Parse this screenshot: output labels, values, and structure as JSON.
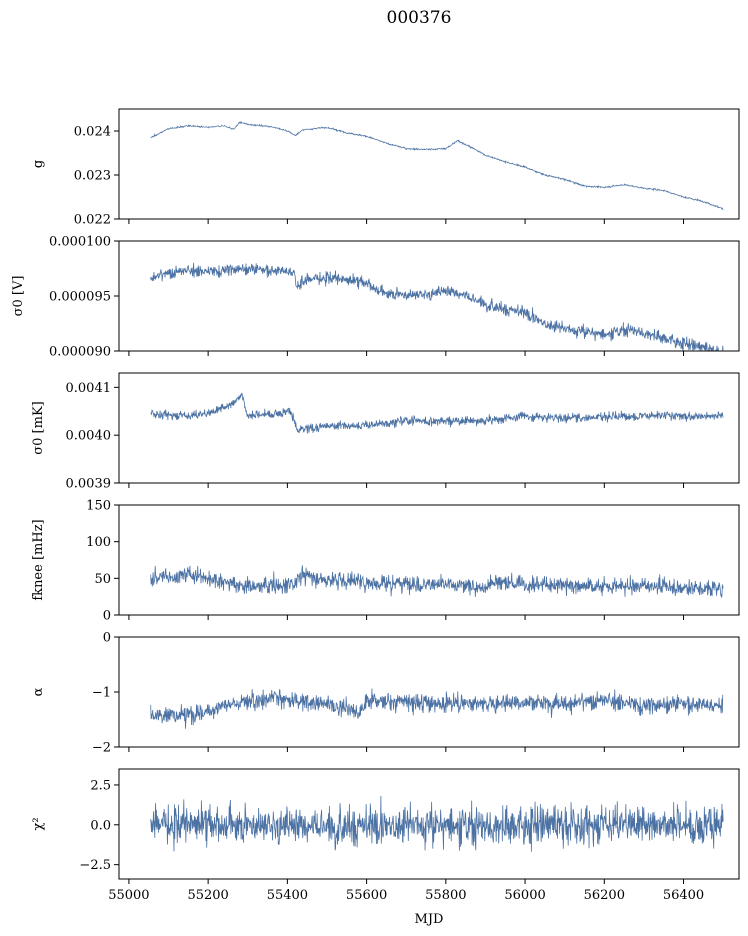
{
  "chart_data": {
    "title": "000376",
    "type": "line",
    "xlabel": "MJD",
    "xlim": [
      54975,
      56540
    ],
    "xticks": [
      55000,
      55200,
      55400,
      55600,
      55800,
      56000,
      56200,
      56400
    ],
    "xtick_labels": [
      "55000",
      "55200",
      "55400",
      "55600",
      "55800",
      "56000",
      "56200",
      "56400"
    ],
    "line_color": "#4c72a4",
    "panels": [
      {
        "id": "g",
        "ylabel": "g",
        "ylim": [
          0.022,
          0.0245
        ],
        "yticks": [
          0.022,
          0.023,
          0.024
        ],
        "ytick_labels": [
          "0.022",
          "0.023",
          "0.024"
        ],
        "noise": 2e-05,
        "points": [
          [
            55055,
            0.02385
          ],
          [
            55100,
            0.02405
          ],
          [
            55150,
            0.02412
          ],
          [
            55200,
            0.02408
          ],
          [
            55240,
            0.02412
          ],
          [
            55265,
            0.02404
          ],
          [
            55280,
            0.0242
          ],
          [
            55300,
            0.02415
          ],
          [
            55360,
            0.0241
          ],
          [
            55400,
            0.024
          ],
          [
            55420,
            0.0239
          ],
          [
            55440,
            0.02403
          ],
          [
            55500,
            0.02408
          ],
          [
            55550,
            0.02396
          ],
          [
            55600,
            0.02388
          ],
          [
            55650,
            0.02372
          ],
          [
            55700,
            0.0236
          ],
          [
            55750,
            0.02358
          ],
          [
            55800,
            0.0236
          ],
          [
            55830,
            0.02378
          ],
          [
            55860,
            0.02365
          ],
          [
            55900,
            0.02345
          ],
          [
            55950,
            0.0233
          ],
          [
            56000,
            0.02318
          ],
          [
            56050,
            0.023
          ],
          [
            56100,
            0.0229
          ],
          [
            56150,
            0.02275
          ],
          [
            56200,
            0.02272
          ],
          [
            56250,
            0.02278
          ],
          [
            56300,
            0.0227
          ],
          [
            56350,
            0.02265
          ],
          [
            56400,
            0.0225
          ],
          [
            56450,
            0.0224
          ],
          [
            56500,
            0.02223
          ]
        ]
      },
      {
        "id": "sigma0_v",
        "ylabel": "σ0 [V]",
        "ylim": [
          9e-05,
          0.0001
        ],
        "yticks": [
          9e-05,
          9.5e-05,
          0.0001
        ],
        "ytick_labels": [
          "0.000090",
          "0.000095",
          "0.000100"
        ],
        "noise": 4e-07,
        "points": [
          [
            55055,
            9.66e-05
          ],
          [
            55100,
            9.71e-05
          ],
          [
            55150,
            9.73e-05
          ],
          [
            55200,
            9.72e-05
          ],
          [
            55280,
            9.75e-05
          ],
          [
            55350,
            9.74e-05
          ],
          [
            55418,
            9.72e-05
          ],
          [
            55422,
            9.58e-05
          ],
          [
            55450,
            9.65e-05
          ],
          [
            55500,
            9.67e-05
          ],
          [
            55560,
            9.64e-05
          ],
          [
            55600,
            9.62e-05
          ],
          [
            55640,
            9.53e-05
          ],
          [
            55700,
            9.51e-05
          ],
          [
            55760,
            9.52e-05
          ],
          [
            55800,
            9.55e-05
          ],
          [
            55840,
            9.52e-05
          ],
          [
            55880,
            9.46e-05
          ],
          [
            55930,
            9.4e-05
          ],
          [
            56000,
            9.35e-05
          ],
          [
            56050,
            9.25e-05
          ],
          [
            56100,
            9.2e-05
          ],
          [
            56150,
            9.18e-05
          ],
          [
            56200,
            9.15e-05
          ],
          [
            56260,
            9.2e-05
          ],
          [
            56300,
            9.17e-05
          ],
          [
            56350,
            9.12e-05
          ],
          [
            56400,
            9.07e-05
          ],
          [
            56450,
            9.03e-05
          ],
          [
            56500,
            8.98e-05
          ]
        ]
      },
      {
        "id": "sigma0_mk",
        "ylabel": "σ0 [mK]",
        "ylim": [
          0.0039,
          0.00413
        ],
        "yticks": [
          0.0039,
          0.004,
          0.0041
        ],
        "ytick_labels": [
          "0.0039",
          "0.0040",
          "0.0041"
        ],
        "noise": 6.5e-06,
        "points": [
          [
            55055,
            0.004045
          ],
          [
            55150,
            0.00404
          ],
          [
            55200,
            0.004045
          ],
          [
            55260,
            0.004065
          ],
          [
            55285,
            0.004085
          ],
          [
            55300,
            0.00404
          ],
          [
            55350,
            0.004045
          ],
          [
            55410,
            0.00405
          ],
          [
            55425,
            0.00401
          ],
          [
            55500,
            0.00402
          ],
          [
            55600,
            0.00402
          ],
          [
            55700,
            0.00403
          ],
          [
            55800,
            0.00403
          ],
          [
            55900,
            0.00403
          ],
          [
            56000,
            0.00404
          ],
          [
            56100,
            0.004035
          ],
          [
            56200,
            0.00404
          ],
          [
            56300,
            0.00404
          ],
          [
            56400,
            0.00404
          ],
          [
            56500,
            0.00404
          ]
        ]
      },
      {
        "id": "fknee",
        "ylabel": "fknee [mHz]",
        "ylim": [
          0,
          150
        ],
        "yticks": [
          0,
          50,
          100,
          150
        ],
        "ytick_labels": [
          "0",
          "50",
          "100",
          "150"
        ],
        "noise": 8,
        "points": [
          [
            55055,
            50
          ],
          [
            55150,
            55
          ],
          [
            55250,
            45
          ],
          [
            55300,
            38
          ],
          [
            55420,
            42
          ],
          [
            55430,
            55
          ],
          [
            55500,
            48
          ],
          [
            55600,
            45
          ],
          [
            55700,
            42
          ],
          [
            55800,
            40
          ],
          [
            55900,
            38
          ],
          [
            55920,
            45
          ],
          [
            56000,
            42
          ],
          [
            56100,
            40
          ],
          [
            56200,
            38
          ],
          [
            56300,
            40
          ],
          [
            56400,
            38
          ],
          [
            56500,
            36
          ]
        ]
      },
      {
        "id": "alpha",
        "ylabel": "α",
        "ylim": [
          -2,
          0
        ],
        "yticks": [
          -2,
          -1,
          0
        ],
        "ytick_labels": [
          "−2",
          "−1",
          "0"
        ],
        "noise": 0.12,
        "points": [
          [
            55055,
            -1.4
          ],
          [
            55150,
            -1.42
          ],
          [
            55200,
            -1.35
          ],
          [
            55250,
            -1.25
          ],
          [
            55300,
            -1.2
          ],
          [
            55350,
            -1.1
          ],
          [
            55420,
            -1.15
          ],
          [
            55500,
            -1.2
          ],
          [
            55550,
            -1.3
          ],
          [
            55580,
            -1.4
          ],
          [
            55600,
            -1.15
          ],
          [
            55700,
            -1.2
          ],
          [
            55800,
            -1.2
          ],
          [
            55900,
            -1.2
          ],
          [
            56000,
            -1.2
          ],
          [
            56100,
            -1.2
          ],
          [
            56200,
            -1.15
          ],
          [
            56300,
            -1.25
          ],
          [
            56400,
            -1.2
          ],
          [
            56500,
            -1.25
          ]
        ]
      },
      {
        "id": "chi2",
        "ylabel": "χ²",
        "ylim": [
          -3.4,
          3.5
        ],
        "yticks": [
          -2.5,
          0,
          2.5
        ],
        "ytick_labels": [
          "−2.5",
          "0.0",
          "2.5"
        ],
        "noise": 0.85,
        "points": [
          [
            55055,
            0.1
          ],
          [
            55300,
            0.0
          ],
          [
            55600,
            0.0
          ],
          [
            55900,
            0.0
          ],
          [
            56200,
            0.0
          ],
          [
            56500,
            0.1
          ]
        ]
      }
    ]
  }
}
